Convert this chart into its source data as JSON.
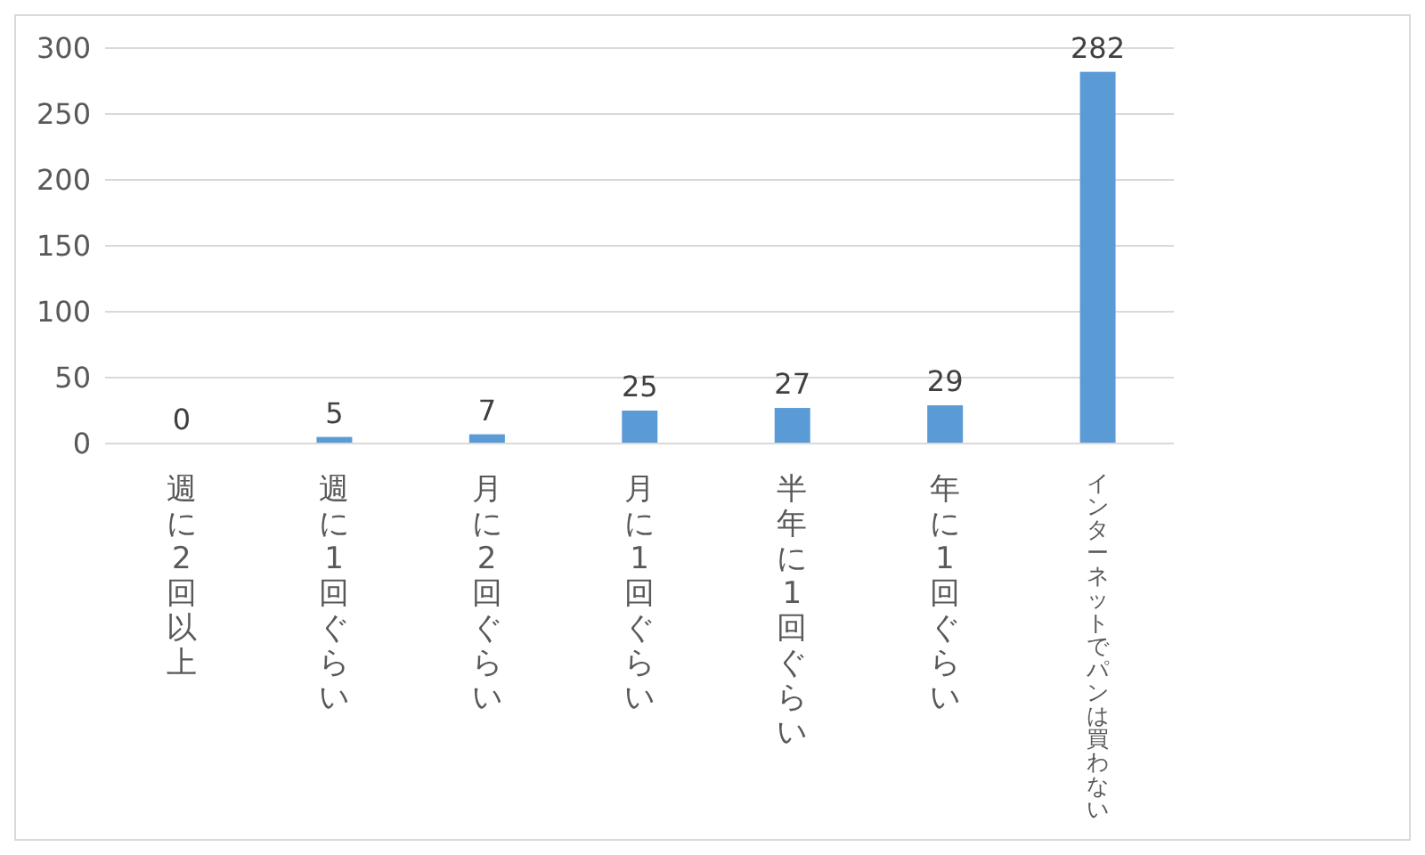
{
  "chart_data": {
    "type": "bar",
    "categories": [
      "週に2回以上",
      "週に1回ぐらい",
      "月に2回ぐらい",
      "月に1回ぐらい",
      "半年に1回ぐらい",
      "年に1回ぐらい",
      "インターネットでパンは買わない"
    ],
    "values": [
      0,
      5,
      7,
      25,
      27,
      29,
      282
    ],
    "color": "#5b9bd5",
    "ylim": [
      0,
      300
    ],
    "yticks": [
      0,
      50,
      100,
      150,
      200,
      250,
      300
    ],
    "grid": "y",
    "data_labels": true
  }
}
